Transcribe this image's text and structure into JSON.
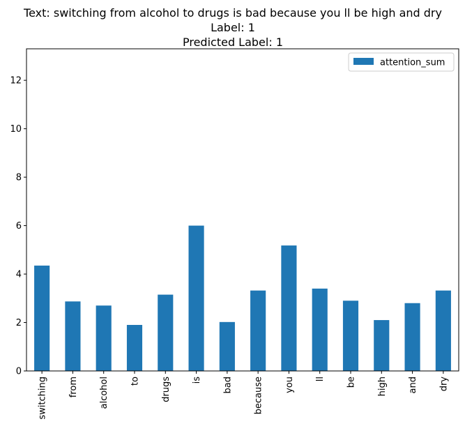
{
  "chart_data": {
    "type": "bar",
    "title_lines": [
      "Text: switching from alcohol to drugs is bad because you ll be high and dry",
      "Label: 1",
      "Predicted Label: 1"
    ],
    "xlabel": "",
    "ylabel": "",
    "categories": [
      "switching",
      "from",
      "alcohol",
      "to",
      "drugs",
      "is",
      "bad",
      "because",
      "you",
      "ll",
      "be",
      "high",
      "and",
      "dry"
    ],
    "series": [
      {
        "name": "attention_sum",
        "values": [
          4.35,
          2.87,
          2.7,
          1.9,
          3.15,
          6.0,
          2.02,
          3.32,
          5.18,
          3.4,
          2.9,
          2.1,
          2.8,
          3.32
        ],
        "color": "#1f77b4"
      }
    ],
    "ylim": [
      0,
      13.3
    ],
    "yticks": [
      0,
      2,
      4,
      6,
      8,
      10,
      12
    ],
    "grid": false,
    "legend_position": "top-right"
  }
}
